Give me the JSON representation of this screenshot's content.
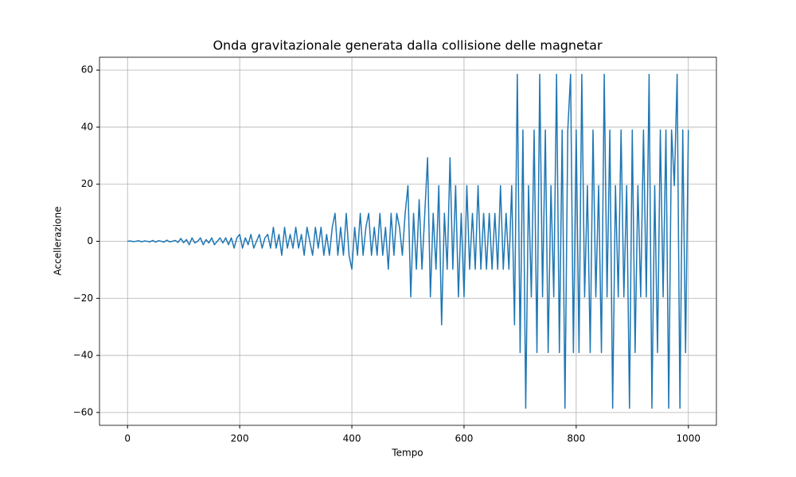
{
  "chart_data": {
    "type": "line",
    "title": "Onda gravitazionale generata dalla collisione delle magnetar",
    "xlabel": "Tempo",
    "ylabel": "Accellerazione",
    "color": "#1f77b4",
    "grid": true,
    "xlim": [
      -50,
      1050
    ],
    "xticks": [
      0,
      200,
      400,
      600,
      800,
      1000
    ],
    "ylim": [
      -64.5,
      64.5
    ],
    "yticks": [
      {
        "value": -60,
        "label": "−60"
      },
      {
        "value": -40,
        "label": "−40"
      },
      {
        "value": -20,
        "label": "−20"
      },
      0,
      20,
      40,
      60
    ],
    "x": [
      0,
      5,
      10,
      15,
      20,
      25,
      30,
      35,
      40,
      45,
      50,
      55,
      60,
      65,
      70,
      75,
      80,
      85,
      90,
      95,
      100,
      105,
      110,
      115,
      120,
      125,
      130,
      135,
      140,
      145,
      150,
      155,
      160,
      165,
      170,
      175,
      180,
      185,
      190,
      195,
      200,
      205,
      210,
      215,
      220,
      225,
      230,
      235,
      240,
      245,
      250,
      255,
      260,
      265,
      270,
      275,
      280,
      285,
      290,
      295,
      300,
      305,
      310,
      315,
      320,
      325,
      330,
      335,
      340,
      345,
      350,
      355,
      360,
      365,
      370,
      375,
      380,
      385,
      390,
      395,
      400,
      405,
      410,
      415,
      420,
      425,
      430,
      435,
      440,
      445,
      450,
      455,
      460,
      465,
      470,
      475,
      480,
      485,
      490,
      495,
      500,
      505,
      510,
      515,
      520,
      525,
      530,
      535,
      540,
      545,
      550,
      555,
      560,
      565,
      570,
      575,
      580,
      585,
      590,
      595,
      600,
      605,
      610,
      615,
      620,
      625,
      630,
      635,
      640,
      645,
      650,
      655,
      660,
      665,
      670,
      675,
      680,
      685,
      690,
      695,
      700,
      705,
      710,
      715,
      720,
      725,
      730,
      735,
      740,
      745,
      750,
      755,
      760,
      765,
      770,
      775,
      780,
      785,
      790,
      795,
      800,
      805,
      810,
      815,
      820,
      825,
      830,
      835,
      840,
      845,
      850,
      855,
      860,
      865,
      870,
      875,
      880,
      885,
      890,
      895,
      900,
      905,
      910,
      915,
      920,
      925,
      930,
      935,
      940,
      945,
      950,
      955,
      960,
      965,
      970,
      975,
      980,
      985,
      990,
      995,
      1000
    ],
    "values": [
      0,
      0.1,
      -0.1,
      0,
      0.2,
      -0.2,
      0.1,
      0,
      -0.2,
      0.3,
      -0.3,
      0.2,
      0,
      -0.3,
      0.4,
      -0.2,
      0,
      0.3,
      -0.4,
      1,
      -0.5,
      0.6,
      -1.2,
      1.2,
      -0.6,
      0,
      1.2,
      -1.2,
      0.6,
      -0.6,
      1.2,
      -1.2,
      0,
      1.2,
      -0.6,
      1.2,
      -1.2,
      1.2,
      -2.4,
      1.2,
      2.4,
      -2.4,
      1.2,
      -1.2,
      2.4,
      -2.4,
      0,
      2.4,
      -2.4,
      1.2,
      2.4,
      -2.4,
      4.9,
      -2.4,
      2.4,
      -4.9,
      4.9,
      -2.4,
      2.4,
      -2.4,
      4.9,
      -2.4,
      2.4,
      -4.9,
      4.9,
      0,
      -4.9,
      4.9,
      -2.4,
      4.9,
      -4.9,
      2.4,
      -4.9,
      4.9,
      9.8,
      -4.9,
      4.9,
      -4.9,
      9.8,
      -4.9,
      -9.8,
      4.9,
      -4.9,
      9.8,
      -4.9,
      4.9,
      9.8,
      -4.9,
      4.9,
      -4.9,
      9.8,
      -4.9,
      4.9,
      -9.8,
      9.8,
      -4.9,
      9.8,
      4.9,
      -4.9,
      9.8,
      19.5,
      -19.5,
      9.8,
      -9.8,
      14.6,
      -9.8,
      9.8,
      29.3,
      -19.5,
      9.8,
      -9.8,
      19.5,
      -29.3,
      9.8,
      -9.8,
      29.3,
      -9.8,
      19.5,
      -19.5,
      9.8,
      -19.5,
      19.5,
      -9.8,
      9.8,
      -9.8,
      19.5,
      -9.8,
      9.8,
      -9.8,
      9.8,
      -9.8,
      9.8,
      -9.8,
      19.5,
      -9.8,
      9.8,
      -9.8,
      19.5,
      -29.3,
      58.5,
      -39,
      39,
      -58.5,
      19.5,
      -19.5,
      39,
      -39,
      58.5,
      -19.5,
      39,
      -39,
      19.5,
      -19.5,
      58.5,
      -39,
      39,
      -58.5,
      39,
      58.5,
      -39,
      39,
      -39,
      58.5,
      -19.5,
      19.5,
      -39,
      39,
      -19.5,
      19.5,
      -39,
      58.5,
      -19.5,
      39,
      -58.5,
      19.5,
      -19.5,
      39,
      -19.5,
      19.5,
      -58.5,
      39,
      -39,
      19.5,
      -19.5,
      39,
      -19.5,
      58.5,
      -58.5,
      19.5,
      -39,
      39,
      -19.5,
      39,
      -58.5,
      39,
      19.5,
      58.5,
      -58.5,
      39,
      -39,
      39
    ]
  }
}
